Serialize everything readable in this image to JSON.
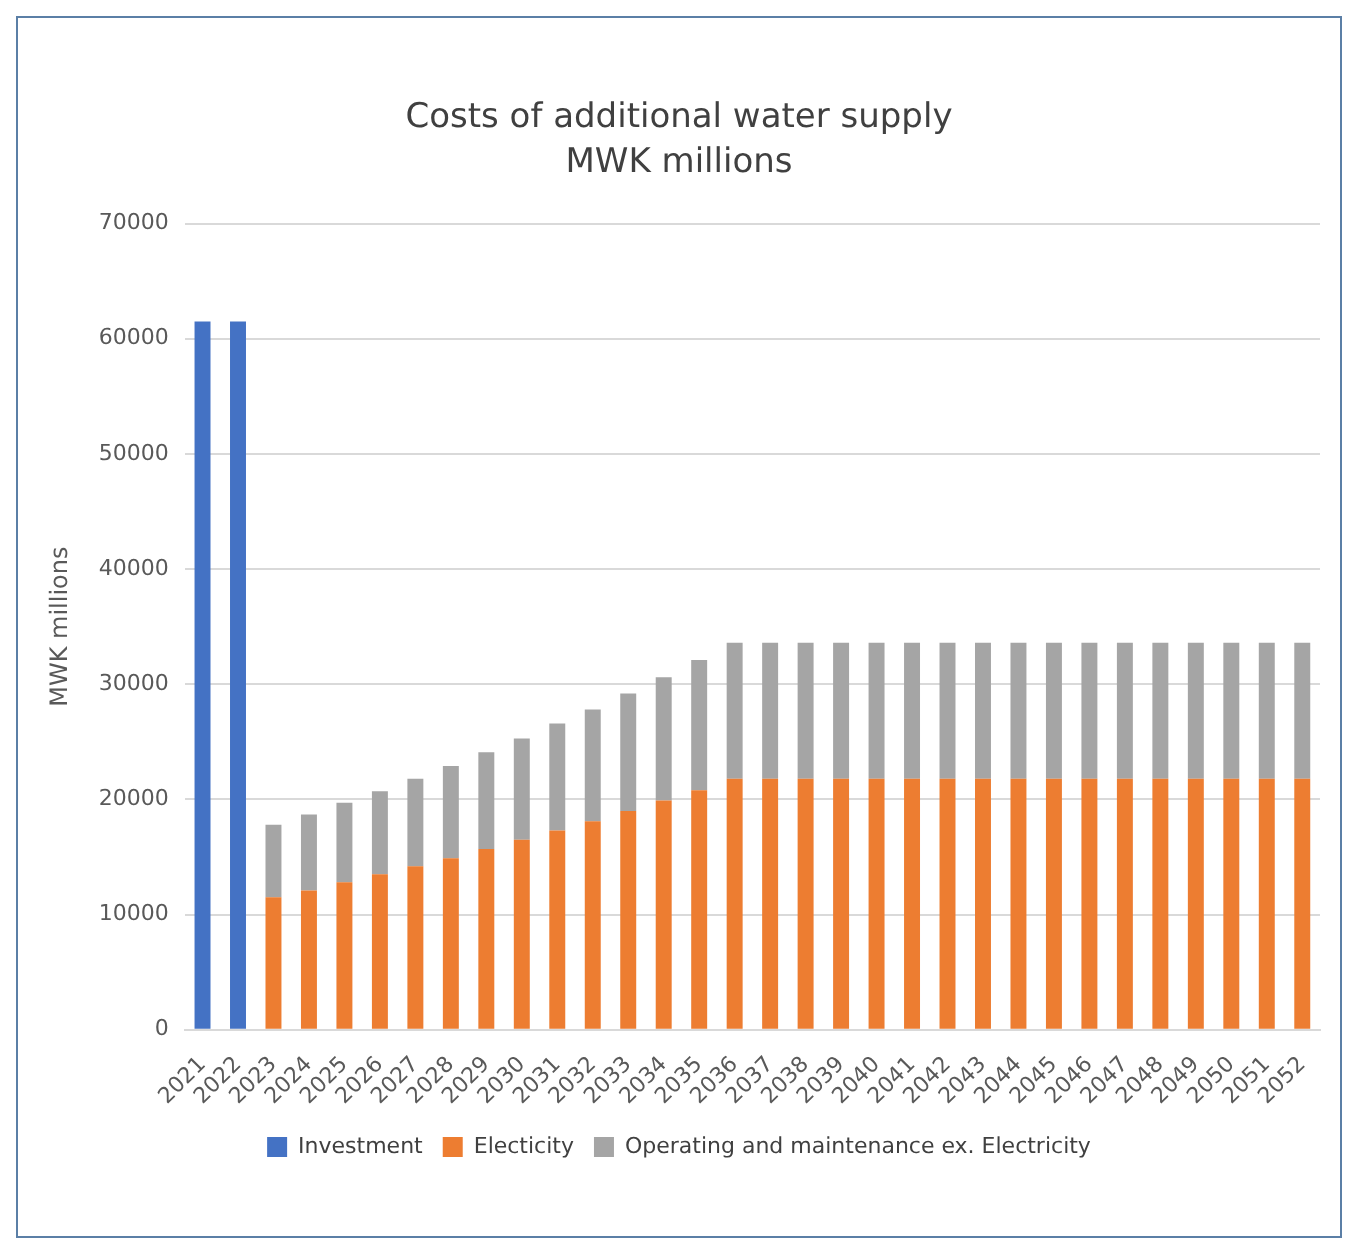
{
  "chart_data": {
    "type": "bar",
    "title": "Costs of additional water supply",
    "subtitle": "MWK millions",
    "ylabel": "MWK millions",
    "categories": [
      "2021",
      "2022",
      "2023",
      "2024",
      "2025",
      "2026",
      "2027",
      "2028",
      "2029",
      "2030",
      "2031",
      "2032",
      "2033",
      "2034",
      "2035",
      "2036",
      "2037",
      "2038",
      "2039",
      "2040",
      "2041",
      "2042",
      "2043",
      "2044",
      "2045",
      "2046",
      "2047",
      "2048",
      "2049",
      "2050",
      "2051",
      "2052"
    ],
    "stacked": true,
    "ylim": [
      0,
      70000
    ],
    "yticks": [
      0,
      10000,
      20000,
      30000,
      40000,
      50000,
      60000,
      70000
    ],
    "grid": "y",
    "legend": "bottom",
    "series": [
      {
        "name": "Investment",
        "color": "#4472c4",
        "values": [
          61500,
          61500,
          null,
          null,
          null,
          null,
          null,
          null,
          null,
          null,
          null,
          null,
          null,
          null,
          null,
          null,
          null,
          null,
          null,
          null,
          null,
          null,
          null,
          null,
          null,
          null,
          null,
          null,
          null,
          null,
          null,
          null
        ]
      },
      {
        "name": "Electicity",
        "color": "#ed7d31",
        "values": [
          null,
          null,
          11500,
          12100,
          12800,
          13500,
          14200,
          14900,
          15700,
          16500,
          17300,
          18100,
          19000,
          19900,
          20800,
          21800,
          21800,
          21800,
          21800,
          21800,
          21800,
          21800,
          21800,
          21800,
          21800,
          21800,
          21800,
          21800,
          21800,
          21800,
          21800,
          21800
        ]
      },
      {
        "name": "Operating and maintenance ex. Electricity",
        "color": "#a5a5a5",
        "values": [
          null,
          null,
          6300,
          6600,
          6900,
          7200,
          7600,
          8000,
          8400,
          8800,
          9300,
          9700,
          10200,
          10700,
          11300,
          11800,
          11800,
          11800,
          11800,
          11800,
          11800,
          11800,
          11800,
          11800,
          11800,
          11800,
          11800,
          11800,
          11800,
          11800,
          11800,
          11800
        ]
      }
    ]
  }
}
